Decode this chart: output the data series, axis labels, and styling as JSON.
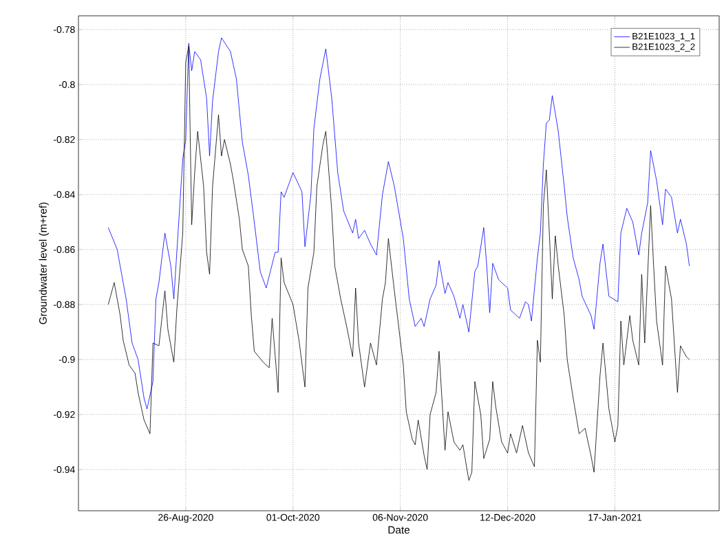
{
  "chart_data": {
    "type": "line",
    "xlabel": "Date",
    "ylabel": "Groundwater level (m+ref)",
    "xlim": [
      "2020-07-21",
      "2021-02-21"
    ],
    "ylim": [
      -0.955,
      -0.775
    ],
    "xticks": [
      {
        "value": "2020-08-26",
        "label": "26-Aug-2020"
      },
      {
        "value": "2020-10-01",
        "label": "01-Oct-2020"
      },
      {
        "value": "2020-11-06",
        "label": "06-Nov-2020"
      },
      {
        "value": "2020-12-12",
        "label": "12-Dec-2020"
      },
      {
        "value": "2021-01-17",
        "label": "17-Jan-2021"
      }
    ],
    "yticks": [
      -0.78,
      -0.8,
      -0.82,
      -0.84,
      -0.86,
      -0.88,
      -0.9,
      -0.92,
      -0.94
    ],
    "grid": true,
    "legend": "top right",
    "series": [
      {
        "name": "B21E1023_1_1",
        "color": "#0000ff",
        "x": [
          "2020-07-31",
          "2020-08-03",
          "2020-08-06",
          "2020-08-08",
          "2020-08-10",
          "2020-08-12",
          "2020-08-13",
          "2020-08-15",
          "2020-08-16",
          "2020-08-17",
          "2020-08-19",
          "2020-08-21",
          "2020-08-22",
          "2020-08-23",
          "2020-08-25",
          "2020-08-26",
          "2020-08-27",
          "2020-08-28",
          "2020-08-29",
          "2020-08-31",
          "2020-09-02",
          "2020-09-03",
          "2020-09-04",
          "2020-09-06",
          "2020-09-07",
          "2020-09-10",
          "2020-09-12",
          "2020-09-14",
          "2020-09-16",
          "2020-09-18",
          "2020-09-20",
          "2020-09-22",
          "2020-09-25",
          "2020-09-26",
          "2020-09-27",
          "2020-09-28",
          "2020-10-01",
          "2020-10-04",
          "2020-10-05",
          "2020-10-07",
          "2020-10-08",
          "2020-10-10",
          "2020-10-12",
          "2020-10-14",
          "2020-10-16",
          "2020-10-18",
          "2020-10-21",
          "2020-10-22",
          "2020-10-23",
          "2020-10-25",
          "2020-10-27",
          "2020-10-29",
          "2020-10-31",
          "2020-11-02",
          "2020-11-04",
          "2020-11-07",
          "2020-11-09",
          "2020-11-11",
          "2020-11-13",
          "2020-11-14",
          "2020-11-16",
          "2020-11-18",
          "2020-11-19",
          "2020-11-21",
          "2020-11-22",
          "2020-11-24",
          "2020-11-26",
          "2020-11-27",
          "2020-11-29",
          "2020-12-01",
          "2020-12-02",
          "2020-12-04",
          "2020-12-05",
          "2020-12-06",
          "2020-12-07",
          "2020-12-09",
          "2020-12-12",
          "2020-12-13",
          "2020-12-16",
          "2020-12-18",
          "2020-12-19",
          "2020-12-20",
          "2020-12-22",
          "2020-12-23",
          "2020-12-24",
          "2020-12-25",
          "2020-12-26",
          "2020-12-27",
          "2020-12-29",
          "2020-12-31",
          "2021-01-01",
          "2021-01-03",
          "2021-01-05",
          "2021-01-06",
          "2021-01-09",
          "2021-01-10",
          "2021-01-12",
          "2021-01-13",
          "2021-01-15",
          "2021-01-18",
          "2021-01-19",
          "2021-01-21",
          "2021-01-23",
          "2021-01-25",
          "2021-01-26",
          "2021-01-28",
          "2021-01-29",
          "2021-01-31",
          "2021-02-02",
          "2021-02-03",
          "2021-02-05",
          "2021-02-07",
          "2021-02-08",
          "2021-02-10",
          "2021-02-11"
        ],
        "values": [
          -0.852,
          -0.86,
          -0.878,
          -0.894,
          -0.9,
          -0.914,
          -0.918,
          -0.908,
          -0.878,
          -0.872,
          -0.854,
          -0.866,
          -0.878,
          -0.861,
          -0.827,
          -0.82,
          -0.785,
          -0.795,
          -0.788,
          -0.791,
          -0.805,
          -0.826,
          -0.806,
          -0.788,
          -0.783,
          -0.788,
          -0.798,
          -0.821,
          -0.833,
          -0.85,
          -0.868,
          -0.874,
          -0.861,
          -0.861,
          -0.839,
          -0.841,
          -0.832,
          -0.839,
          -0.859,
          -0.84,
          -0.816,
          -0.798,
          -0.787,
          -0.805,
          -0.832,
          -0.846,
          -0.854,
          -0.849,
          -0.856,
          -0.853,
          -0.858,
          -0.862,
          -0.84,
          -0.828,
          -0.837,
          -0.856,
          -0.878,
          -0.888,
          -0.885,
          -0.888,
          -0.878,
          -0.873,
          -0.864,
          -0.876,
          -0.872,
          -0.877,
          -0.885,
          -0.88,
          -0.89,
          -0.868,
          -0.866,
          -0.852,
          -0.866,
          -0.883,
          -0.865,
          -0.871,
          -0.874,
          -0.882,
          -0.885,
          -0.879,
          -0.88,
          -0.886,
          -0.863,
          -0.854,
          -0.829,
          -0.814,
          -0.813,
          -0.804,
          -0.817,
          -0.837,
          -0.848,
          -0.863,
          -0.871,
          -0.877,
          -0.884,
          -0.889,
          -0.865,
          -0.858,
          -0.877,
          -0.879,
          -0.854,
          -0.845,
          -0.85,
          -0.862,
          -0.854,
          -0.843,
          -0.824,
          -0.835,
          -0.851,
          -0.838,
          -0.841,
          -0.854,
          -0.849,
          -0.858,
          -0.866
        ]
      },
      {
        "name": "B21E1023_2_2",
        "color": "#000000",
        "x": [
          "2020-07-31",
          "2020-08-02",
          "2020-08-04",
          "2020-08-05",
          "2020-08-07",
          "2020-08-09",
          "2020-08-10",
          "2020-08-12",
          "2020-08-14",
          "2020-08-15",
          "2020-08-17",
          "2020-08-19",
          "2020-08-20",
          "2020-08-22",
          "2020-08-23",
          "2020-08-25",
          "2020-08-26",
          "2020-08-27",
          "2020-08-28",
          "2020-08-29",
          "2020-08-30",
          "2020-09-01",
          "2020-09-02",
          "2020-09-03",
          "2020-09-04",
          "2020-09-06",
          "2020-09-07",
          "2020-09-08",
          "2020-09-10",
          "2020-09-11",
          "2020-09-13",
          "2020-09-14",
          "2020-09-16",
          "2020-09-17",
          "2020-09-18",
          "2020-09-21",
          "2020-09-23",
          "2020-09-24",
          "2020-09-26",
          "2020-09-27",
          "2020-09-28",
          "2020-10-01",
          "2020-10-03",
          "2020-10-05",
          "2020-10-06",
          "2020-10-08",
          "2020-10-09",
          "2020-10-11",
          "2020-10-12",
          "2020-10-14",
          "2020-10-15",
          "2020-10-17",
          "2020-10-19",
          "2020-10-21",
          "2020-10-22",
          "2020-10-23",
          "2020-10-25",
          "2020-10-27",
          "2020-10-29",
          "2020-10-30",
          "2020-10-31",
          "2020-11-01",
          "2020-11-02",
          "2020-11-04",
          "2020-11-05",
          "2020-11-07",
          "2020-11-08",
          "2020-11-10",
          "2020-11-11",
          "2020-11-12",
          "2020-11-14",
          "2020-11-15",
          "2020-11-16",
          "2020-11-18",
          "2020-11-19",
          "2020-11-21",
          "2020-11-22",
          "2020-11-24",
          "2020-11-26",
          "2020-11-27",
          "2020-11-29",
          "2020-11-30",
          "2020-12-01",
          "2020-12-03",
          "2020-12-04",
          "2020-12-06",
          "2020-12-07",
          "2020-12-08",
          "2020-12-10",
          "2020-12-12",
          "2020-12-13",
          "2020-12-15",
          "2020-12-17",
          "2020-12-19",
          "2020-12-21",
          "2020-12-22",
          "2020-12-23",
          "2020-12-24",
          "2020-12-25",
          "2020-12-26",
          "2020-12-27",
          "2020-12-28",
          "2020-12-29",
          "2020-12-31",
          "2021-01-01",
          "2021-01-03",
          "2021-01-05",
          "2021-01-07",
          "2021-01-09",
          "2021-01-10",
          "2021-01-12",
          "2021-01-13",
          "2021-01-15",
          "2021-01-17",
          "2021-01-18",
          "2021-01-19",
          "2021-01-20",
          "2021-01-22",
          "2021-01-23",
          "2021-01-25",
          "2021-01-26",
          "2021-01-27",
          "2021-01-29",
          "2021-01-30",
          "2021-01-31",
          "2021-02-01",
          "2021-02-02",
          "2021-02-03",
          "2021-02-05",
          "2021-02-07",
          "2021-02-08",
          "2021-02-10",
          "2021-02-11"
        ],
        "values": [
          -0.88,
          -0.872,
          -0.884,
          -0.893,
          -0.902,
          -0.905,
          -0.912,
          -0.922,
          -0.927,
          -0.894,
          -0.895,
          -0.875,
          -0.889,
          -0.901,
          -0.882,
          -0.854,
          -0.792,
          -0.786,
          -0.851,
          -0.832,
          -0.817,
          -0.837,
          -0.861,
          -0.869,
          -0.837,
          -0.811,
          -0.826,
          -0.82,
          -0.829,
          -0.835,
          -0.849,
          -0.86,
          -0.866,
          -0.884,
          -0.897,
          -0.901,
          -0.903,
          -0.885,
          -0.912,
          -0.863,
          -0.872,
          -0.88,
          -0.893,
          -0.91,
          -0.874,
          -0.861,
          -0.837,
          -0.822,
          -0.817,
          -0.846,
          -0.866,
          -0.878,
          -0.888,
          -0.899,
          -0.874,
          -0.894,
          -0.91,
          -0.894,
          -0.902,
          -0.89,
          -0.878,
          -0.872,
          -0.856,
          -0.875,
          -0.884,
          -0.902,
          -0.919,
          -0.929,
          -0.931,
          -0.922,
          -0.935,
          -0.94,
          -0.92,
          -0.912,
          -0.897,
          -0.933,
          -0.919,
          -0.93,
          -0.933,
          -0.931,
          -0.944,
          -0.941,
          -0.908,
          -0.92,
          -0.936,
          -0.929,
          -0.908,
          -0.917,
          -0.93,
          -0.934,
          -0.927,
          -0.934,
          -0.924,
          -0.934,
          -0.939,
          -0.893,
          -0.901,
          -0.844,
          -0.831,
          -0.854,
          -0.878,
          -0.855,
          -0.866,
          -0.884,
          -0.9,
          -0.914,
          -0.927,
          -0.925,
          -0.935,
          -0.941,
          -0.906,
          -0.894,
          -0.918,
          -0.93,
          -0.924,
          -0.886,
          -0.902,
          -0.884,
          -0.893,
          -0.902,
          -0.869,
          -0.894,
          -0.844,
          -0.866,
          -0.886,
          -0.894,
          -0.902,
          -0.866,
          -0.878,
          -0.912,
          -0.895,
          -0.899,
          -0.9
        ]
      }
    ]
  }
}
